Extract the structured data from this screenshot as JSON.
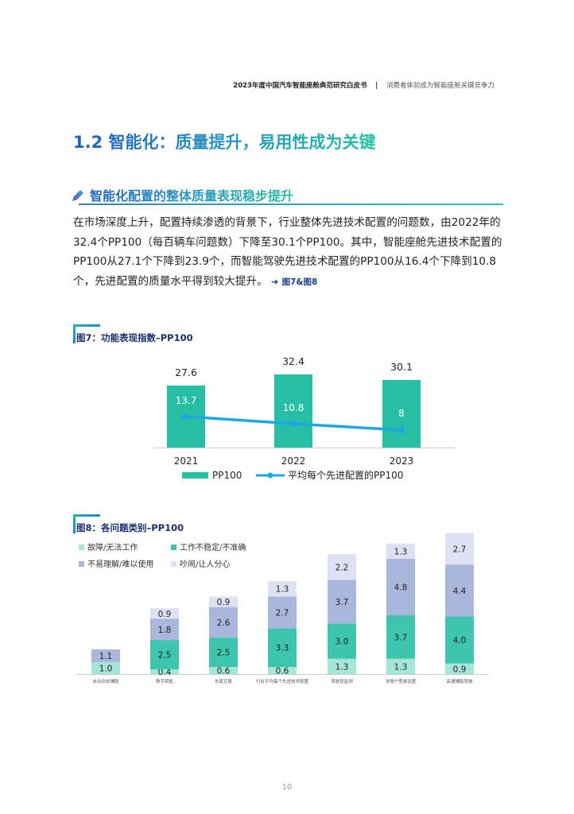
{
  "header": {
    "document_title": "2023年度中国汽车智能座舱典范研究白皮书",
    "separator": "|",
    "chapter_title": "消费者体验成为智能座舱关键竞争力"
  },
  "section": {
    "heading": "1.2 智能化：质量提升，易用性成为关键",
    "subheading": "智能化配置的整体质量表现稳步提升",
    "subheading_icon": "pencil-icon",
    "paragraph": "在市场深度上升，配置持续渗透的背景下，行业整体先进技术配置的问题数，由2022年的32.4个PP100（每百辆车问题数）下降至30.1个PP100。其中，智能座舱先进技术配置的PP100从27.1个下降到23.9个，而智能驾驶先进技术配置的PP100从16.4个下降到10.8个，先进配置的质量水平得到较大提升。",
    "arrow_icon": "arrow-right-icon",
    "figure_reference": "图7&图8"
  },
  "colors": {
    "title_gradient_start": "#1f5fbf",
    "title_gradient_end": "#26c0a3",
    "fig_title": "#1b2e6e",
    "bar_teal": "#26bfa5",
    "line_blue": "#1aa9e0",
    "stack_c1": "#a6e6d8",
    "stack_c2": "#3dc6ad",
    "stack_c3": "#aab6dc",
    "stack_c4": "#dde1f1"
  },
  "figure7": {
    "title": "图7：功能表现指数–PP100",
    "legend": {
      "bar_label": "PP100",
      "line_label": "平均每个先进配置的PP100"
    }
  },
  "figure8": {
    "title": "图8：各问题类别–PP100",
    "legend": [
      {
        "label": "故障/无法工作",
        "color": "#a6e6d8"
      },
      {
        "label": "工作不稳定/不准确",
        "color": "#3dc6ad"
      },
      {
        "label": "不易理解/难以使用",
        "color": "#aab6dc"
      },
      {
        "label": "吵闹/让人分心",
        "color": "#dde1f1"
      }
    ]
  },
  "chart_data": [
    {
      "type": "bar",
      "title": "图7：功能表现指数–PP100",
      "categories": [
        "2021",
        "2022",
        "2023"
      ],
      "series": [
        {
          "name": "PP100",
          "kind": "bar",
          "values": [
            27.6,
            32.4,
            30.1
          ]
        },
        {
          "name": "平均每个先进配置的PP100",
          "kind": "line",
          "values": [
            13.7,
            10.8,
            8.0
          ]
        }
      ],
      "xlabel": "",
      "ylabel": "",
      "grid": false,
      "legend_position": "bottom"
    },
    {
      "type": "bar",
      "stacked": true,
      "title": "图8：各问题类别–PP100",
      "categories": [
        "自动泊车辅助",
        "数字钥匙",
        "车家互联",
        "行业平均每个先进技术配置",
        "驾驶员监测",
        "多账户登录设置",
        "高速辅助驾驶"
      ],
      "series": [
        {
          "name": "故障/无法工作",
          "values": [
            1.0,
            0.4,
            0.6,
            0.6,
            1.3,
            1.3,
            0.9
          ]
        },
        {
          "name": "工作不稳定/不准确",
          "values": [
            0.0,
            2.5,
            2.5,
            3.3,
            3.0,
            3.7,
            4.0
          ]
        },
        {
          "name": "不易理解/难以使用",
          "values": [
            1.1,
            1.8,
            2.6,
            2.7,
            3.7,
            4.8,
            4.4
          ]
        },
        {
          "name": "吵闹/让人分心",
          "values": [
            0.0,
            0.9,
            0.9,
            1.3,
            2.2,
            1.3,
            2.7
          ]
        }
      ],
      "xlabel": "",
      "ylabel": "",
      "grid": false,
      "legend_position": "top-left"
    }
  ],
  "footer": {
    "page_number": "10"
  }
}
